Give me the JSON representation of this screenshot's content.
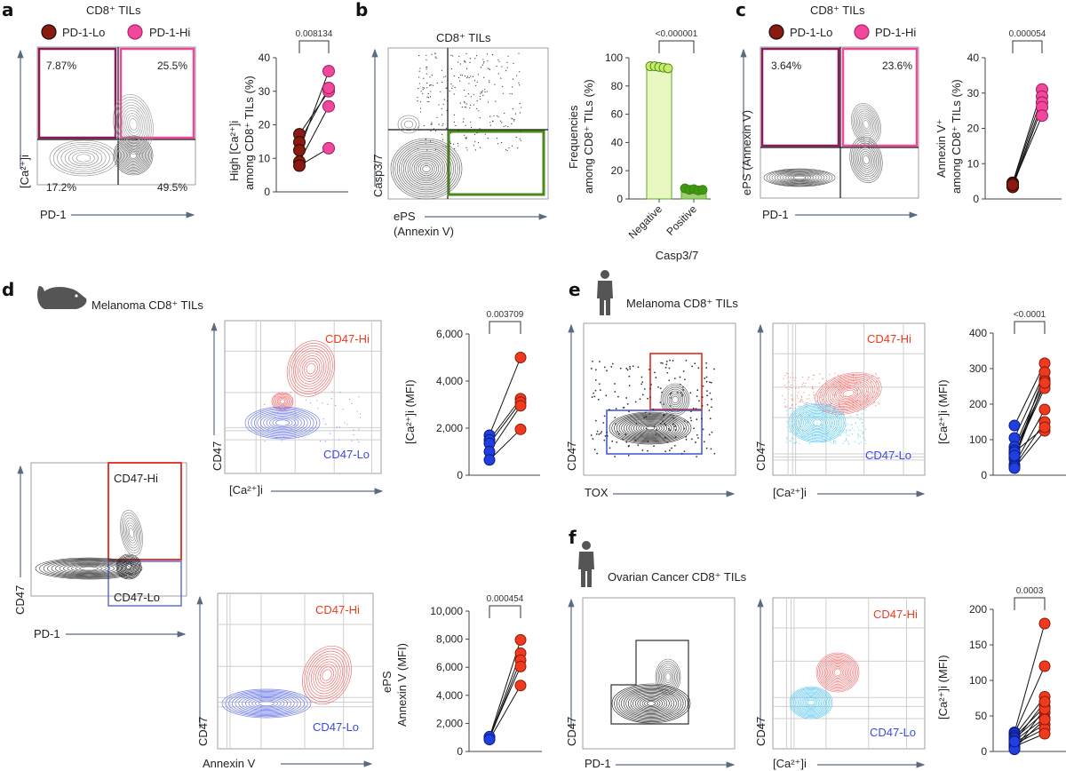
{
  "panels": {
    "a": {
      "label": "a",
      "title": "CD8⁺ TILs",
      "legend": [
        {
          "label": "PD-1-Lo",
          "color": "#8b1a10"
        },
        {
          "label": "PD-1-Hi",
          "color": "#f0489a"
        }
      ],
      "flow": {
        "xlabel": "PD-1",
        "ylabel": "[Ca²⁺]i",
        "quadrants": {
          "UL": "7.87%",
          "UR": "25.5%",
          "LL": "17.2%",
          "LR": "49.5%"
        },
        "gate_colors": {
          "UL": "#8a1c5c",
          "UR": "#f0489a"
        }
      }
    },
    "b": {
      "label": "b",
      "title": "CD8⁺ TILs",
      "flow": {
        "xlabel": "ePS",
        "xlabel2": "(Annexin V)",
        "ylabel": "Casp3/7",
        "gate_color": "#4a8a1a"
      }
    },
    "c": {
      "label": "c",
      "title": "CD8⁺ TILs",
      "legend": [
        {
          "label": "PD-1-Lo",
          "color": "#8b1a10"
        },
        {
          "label": "PD-1-Hi",
          "color": "#f0489a"
        }
      ],
      "flow": {
        "xlabel": "PD-1",
        "ylabel": "ePS (Annexin V)",
        "quadrants": {
          "UL": "3.64%",
          "UR": "23.6%"
        }
      }
    },
    "d": {
      "label": "d",
      "title": "Melanoma CD8⁺ TILs",
      "species_icon": "mouse-icon",
      "gate_plot": {
        "xlabel": "PD-1",
        "ylabel": "CD47",
        "hi_label": "CD47-Hi",
        "lo_label": "CD47-Lo"
      },
      "overlay1": {
        "xlabel": "[Ca²⁺]i",
        "ylabel": "CD47",
        "hi_label": "CD47-Hi",
        "lo_label": "CD47-Lo"
      },
      "overlay2": {
        "xlabel": "Annexin V",
        "ylabel": "CD47",
        "hi_label": "CD47-Hi",
        "lo_label": "CD47-Lo"
      }
    },
    "e": {
      "label": "e",
      "title": "Melanoma CD8⁺ TILs",
      "species_icon": "human-icon",
      "gate_plot": {
        "xlabel": "TOX",
        "ylabel": "CD47"
      },
      "overlay": {
        "xlabel": "[Ca²⁺]i",
        "ylabel": "CD47",
        "hi_label": "CD47-Hi",
        "lo_label": "CD47-Lo"
      }
    },
    "f": {
      "label": "f",
      "title": "Ovarian Cancer CD8⁺ TILs",
      "species_icon": "human-icon",
      "gate_plot": {
        "xlabel": "PD-1",
        "ylabel": "CD47"
      },
      "overlay": {
        "xlabel": "[Ca²⁺]i",
        "ylabel": "CD47",
        "hi_label": "CD47-Hi",
        "lo_label": "CD47-Lo"
      }
    }
  },
  "colors": {
    "pd1_lo": "#8b1a10",
    "pd1_hi": "#f0489a",
    "cd47_lo": "#1f3fe0",
    "cd47_hi": "#f03a1e",
    "neg_fill": "#e9f8c0",
    "neg_edge": "#5aa82a",
    "neg_dot": "#c8ec6a",
    "pos_fill": "#9fcf70",
    "pos_dot": "#3f9a12",
    "contour_hi": "#f07070",
    "contour_lo": "#6f7de8",
    "contour_lo_cyan": "#5cc8ee"
  },
  "chart_data": [
    {
      "id": "a-paired",
      "type": "scatter",
      "title": "",
      "ylabel": "High [Ca²⁺]i among CD8⁺ TILs (%)",
      "ylim": [
        0,
        40
      ],
      "yticks": [
        0,
        10,
        20,
        30,
        40
      ],
      "ytick_labels": [
        "0",
        "10",
        "20",
        "30",
        "40"
      ],
      "categories": [
        "PD-1-Lo",
        "PD-1-Hi"
      ],
      "pairs": [
        [
          17.2,
          30.0
        ],
        [
          14.8,
          31.0
        ],
        [
          12.4,
          36.0
        ],
        [
          9.0,
          25.5
        ],
        [
          7.8,
          13.0
        ]
      ],
      "pvalue": "0.008134"
    },
    {
      "id": "b-bars",
      "type": "bar",
      "ylabel": "Frequencies among CD8⁺ TILs (%)",
      "xlabel": "Casp3/7",
      "categories": [
        "Negative",
        "Positive"
      ],
      "values": [
        93.5,
        6.5
      ],
      "points": [
        [
          94,
          94,
          93.5,
          93,
          92.5
        ],
        [
          7.5,
          6.5,
          7,
          6,
          6.5
        ]
      ],
      "ylim": [
        0,
        100
      ],
      "yticks": [
        0,
        20,
        40,
        60,
        80,
        100
      ],
      "ytick_labels": [
        "0",
        "20",
        "40",
        "60",
        "80",
        "100"
      ],
      "pvalue": "<0.000001"
    },
    {
      "id": "c-paired",
      "type": "scatter",
      "ylabel": "Annexin V⁺ among CD8⁺ TILs (%)",
      "ylim": [
        0,
        40
      ],
      "yticks": [
        0,
        10,
        20,
        30,
        40
      ],
      "ytick_labels": [
        "0",
        "10",
        "20",
        "30",
        "40"
      ],
      "categories": [
        "PD-1-Lo",
        "PD-1-Hi"
      ],
      "pairs": [
        [
          4.6,
          31.0
        ],
        [
          4.4,
          29.0
        ],
        [
          3.8,
          27.3
        ],
        [
          3.4,
          26.0
        ],
        [
          4.0,
          23.6
        ]
      ],
      "pvalue": "0.000054"
    },
    {
      "id": "d-ca-paired",
      "type": "scatter",
      "ylabel": "[Ca²⁺]i (MFI)",
      "ylim": [
        0,
        6000
      ],
      "yticks": [
        0,
        2000,
        4000,
        6000
      ],
      "ytick_labels": [
        "0",
        "2,000",
        "4,000",
        "6,000"
      ],
      "categories": [
        "CD47-Lo",
        "CD47-Hi"
      ],
      "pairs": [
        [
          1700,
          5000
        ],
        [
          1500,
          3250
        ],
        [
          1350,
          3100
        ],
        [
          1000,
          2950
        ],
        [
          650,
          1950
        ]
      ],
      "pvalue": "0.003709"
    },
    {
      "id": "d-eps-paired",
      "type": "scatter",
      "ylabel": "ePS Annexin V (MFI)",
      "ylim": [
        0,
        10000
      ],
      "yticks": [
        0,
        2000,
        4000,
        6000,
        8000,
        10000
      ],
      "ytick_labels": [
        "0",
        "2,000",
        "4,000",
        "6,000",
        "8,000",
        "10,000"
      ],
      "categories": [
        "CD47-Lo",
        "CD47-Hi"
      ],
      "pairs": [
        [
          1000,
          7950
        ],
        [
          950,
          7000
        ],
        [
          900,
          6500
        ],
        [
          1050,
          6050
        ],
        [
          850,
          4700
        ]
      ],
      "pvalue": "0.000454"
    },
    {
      "id": "e-paired",
      "type": "scatter",
      "ylabel": "[Ca²⁺]i (MFI)",
      "ylim": [
        0,
        400
      ],
      "yticks": [
        0,
        100,
        200,
        300,
        400
      ],
      "ytick_labels": [
        "0",
        "100",
        "200",
        "300",
        "400"
      ],
      "categories": [
        "CD47-Lo",
        "CD47-Hi"
      ],
      "pairs": [
        [
          140,
          315
        ],
        [
          105,
          290
        ],
        [
          80,
          270
        ],
        [
          70,
          255
        ],
        [
          60,
          245
        ],
        [
          50,
          290
        ],
        [
          45,
          265
        ],
        [
          30,
          185
        ],
        [
          25,
          150
        ],
        [
          20,
          125
        ],
        [
          65,
          135
        ],
        [
          55,
          260
        ]
      ],
      "pvalue": "<0.0001"
    },
    {
      "id": "f-paired",
      "type": "scatter",
      "ylabel": "[Ca²⁺]i (MFI)",
      "ylim": [
        0,
        200
      ],
      "yticks": [
        0,
        50,
        100,
        150,
        200
      ],
      "ytick_labels": [
        "0",
        "50",
        "100",
        "150",
        "200"
      ],
      "categories": [
        "CD47-Lo",
        "CD47-Hi"
      ],
      "pairs": [
        [
          27,
          180
        ],
        [
          25,
          120
        ],
        [
          22,
          77
        ],
        [
          20,
          63
        ],
        [
          18,
          55
        ],
        [
          15,
          47
        ],
        [
          12,
          38
        ],
        [
          10,
          32
        ],
        [
          7,
          25
        ],
        [
          5,
          45
        ],
        [
          3,
          60
        ],
        [
          14,
          70
        ]
      ],
      "pvalue": "0.0003"
    }
  ]
}
